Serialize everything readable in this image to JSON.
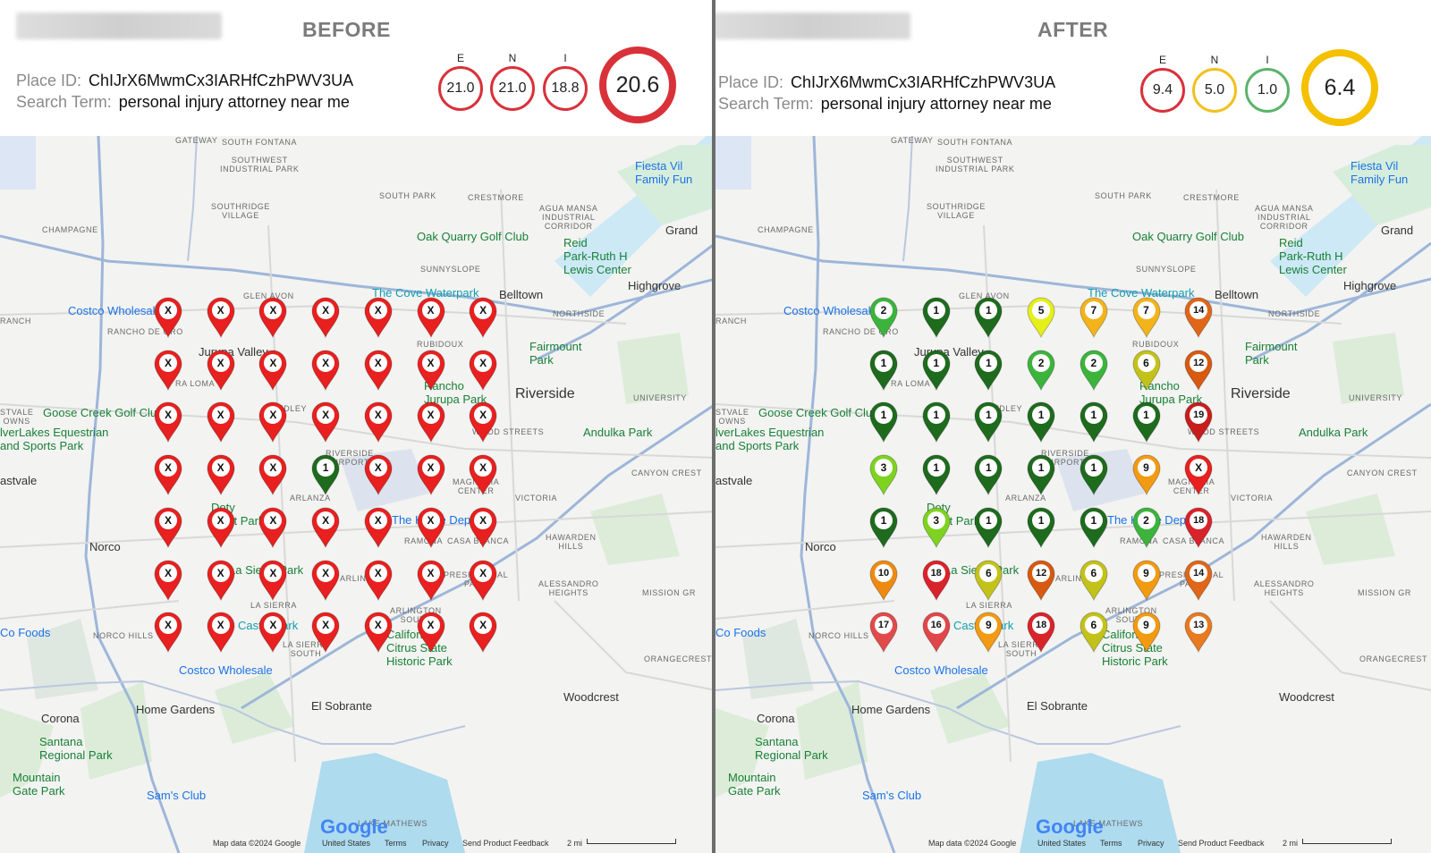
{
  "before": {
    "title": "BEFORE",
    "place_label": "Place ID:",
    "place_id": "ChIJrX6MwmCx3IARHfCzhPWV3UA",
    "search_label": "Search Term:",
    "search_term": "personal injury attorney near me",
    "metrics": [
      {
        "label": "E",
        "value": "21.0",
        "color": "#d9313a"
      },
      {
        "label": "N",
        "value": "21.0",
        "color": "#d9313a"
      },
      {
        "label": "I",
        "value": "18.8",
        "color": "#d9313a"
      }
    ],
    "overall": {
      "value": "20.6",
      "color": "#d9313a"
    },
    "grid": [
      [
        "X",
        "X",
        "X",
        "X",
        "X",
        "X",
        "X"
      ],
      [
        "X",
        "X",
        "X",
        "X",
        "X",
        "X",
        "X"
      ],
      [
        "X",
        "X",
        "X",
        "X",
        "X",
        "X",
        "X"
      ],
      [
        "X",
        "X",
        "X",
        "1",
        "X",
        "X",
        "X"
      ],
      [
        "X",
        "X",
        "X",
        "X",
        "X",
        "X",
        "X"
      ],
      [
        "X",
        "X",
        "X",
        "X",
        "X",
        "X",
        "X"
      ],
      [
        "X",
        "X",
        "X",
        "X",
        "X",
        "X",
        "X"
      ]
    ]
  },
  "after": {
    "title": "AFTER",
    "place_label": "Place ID:",
    "place_id": "ChIJrX6MwmCx3IARHfCzhPWV3UA",
    "search_label": "Search Term:",
    "search_term": "personal injury attorney near me",
    "metrics": [
      {
        "label": "E",
        "value": "9.4",
        "color": "#d9313a"
      },
      {
        "label": "N",
        "value": "5.0",
        "color": "#f2c01e"
      },
      {
        "label": "I",
        "value": "1.0",
        "color": "#5bb36a"
      }
    ],
    "overall": {
      "value": "6.4",
      "color": "#f5c000"
    },
    "grid": [
      [
        "2",
        "1",
        "1",
        "5",
        "7",
        "7",
        "14"
      ],
      [
        "1",
        "1",
        "1",
        "2",
        "2",
        "6",
        "12"
      ],
      [
        "1",
        "1",
        "1",
        "1",
        "1",
        "1",
        "19"
      ],
      [
        "3",
        "1",
        "1",
        "1",
        "1",
        "9",
        "X"
      ],
      [
        "1",
        "3",
        "1",
        "1",
        "1",
        "2",
        "18"
      ],
      [
        "10",
        "18",
        "6",
        "12",
        "6",
        "9",
        "14"
      ],
      [
        "17",
        "16",
        "9",
        "18",
        "6",
        "9",
        "13"
      ]
    ]
  },
  "pin_colors": {
    "X": "#e8201f",
    "1": "#1e6b1e",
    "2": "#3cb43c",
    "3": "#7ed321",
    "5": "#e5ef1a",
    "6": "#c3c21a",
    "7": "#f3b41b",
    "9": "#f29a12",
    "10": "#ef8a10",
    "12": "#d75a10",
    "13": "#e87a20",
    "14": "#e0661a",
    "16": "#e0474a",
    "17": "#e24a4a",
    "18": "#d9232a",
    "19": "#c81d1d"
  },
  "map": {
    "labels": [
      {
        "text": "GATEWAY",
        "cls": "small"
      },
      {
        "text": "SOUTH FONTANA",
        "cls": "small"
      },
      {
        "text": "SOUTHWEST\nINDUSTRIAL PARK",
        "cls": "small"
      },
      {
        "text": "SOUTHRIDGE\nVILLAGE",
        "cls": "small"
      },
      {
        "text": "SOUTH PARK",
        "cls": "small"
      },
      {
        "text": "CRESTMORE",
        "cls": "small"
      },
      {
        "text": "AGUA MANSA\nINDUSTRIAL\nCORRIDOR",
        "cls": "small"
      },
      {
        "text": "CHAMPAGNE",
        "cls": "small"
      },
      {
        "text": "Oak Quarry Golf Club",
        "cls": "poi-green"
      },
      {
        "text": "Reid\nPark-Ruth H\nLewis Center",
        "cls": "poi-green"
      },
      {
        "text": "Fiesta Vil\nFamily Fun",
        "cls": "poi-blue"
      },
      {
        "text": "Grand",
        "cls": "town"
      },
      {
        "text": "SUNNYSLOPE",
        "cls": "small"
      },
      {
        "text": "Highgrove",
        "cls": "town"
      },
      {
        "text": "GLEN AVON",
        "cls": "small"
      },
      {
        "text": "The Cove Waterpark",
        "cls": "poi-teal"
      },
      {
        "text": "Belltown",
        "cls": "town"
      },
      {
        "text": "RANCH",
        "cls": "small"
      },
      {
        "text": "Costco Wholesale",
        "cls": "poi-blue"
      },
      {
        "text": "RANCHO DE ORO",
        "cls": "small"
      },
      {
        "text": "NORTHSIDE",
        "cls": "small"
      },
      {
        "text": "Jurupa Valley",
        "cls": "town"
      },
      {
        "text": "RUBIDOUX",
        "cls": "small"
      },
      {
        "text": "Fairmount\nPark",
        "cls": "poi-green"
      },
      {
        "text": "RA LOMA",
        "cls": "small"
      },
      {
        "text": "Rancho\nJurupa Park",
        "cls": "poi-green"
      },
      {
        "text": "Riverside",
        "cls": "city"
      },
      {
        "text": "UNIVERSITY",
        "cls": "small"
      },
      {
        "text": "STVALE\nOWNS",
        "cls": "small"
      },
      {
        "text": "Goose Creek Golf Club",
        "cls": "poi-green"
      },
      {
        "text": "PEDLEY",
        "cls": "small"
      },
      {
        "text": "lverLakes Equestrian\nand Sports Park",
        "cls": "poi-green"
      },
      {
        "text": "WOOD STREETS",
        "cls": "small"
      },
      {
        "text": "Andulka Park",
        "cls": "poi-green"
      },
      {
        "text": "RIVERSIDE\nAIRPORT",
        "cls": "small"
      },
      {
        "text": "astvale",
        "cls": "town"
      },
      {
        "text": "ARLANZA",
        "cls": "small"
      },
      {
        "text": "MAGNOLIA\nCENTER",
        "cls": "small"
      },
      {
        "text": "CANYON CREST",
        "cls": "small"
      },
      {
        "text": "Doty\nTrust Park",
        "cls": "poi-green"
      },
      {
        "text": "VICTORIA",
        "cls": "small"
      },
      {
        "text": "The Home Depot",
        "cls": "poi-blue"
      },
      {
        "text": "Norco",
        "cls": "town"
      },
      {
        "text": "RAMONA",
        "cls": "small"
      },
      {
        "text": "CASA BLANCA",
        "cls": "small"
      },
      {
        "text": "HAWARDEN\nHILLS",
        "cls": "small"
      },
      {
        "text": "La Sierra Park",
        "cls": "poi-green"
      },
      {
        "text": "ARLINGTON",
        "cls": "small"
      },
      {
        "text": "PRESIDENTIAL\nPARK",
        "cls": "small"
      },
      {
        "text": "ALESSANDRO\nHEIGHTS",
        "cls": "small"
      },
      {
        "text": "MISSION GR",
        "cls": "small"
      },
      {
        "text": "LA SIERRA",
        "cls": "small"
      },
      {
        "text": "ARLINGTON\nSOUTH",
        "cls": "small"
      },
      {
        "text": "Co Foods",
        "cls": "poi-blue"
      },
      {
        "text": "NORCO HILLS",
        "cls": "small"
      },
      {
        "text": "Castle Park",
        "cls": "poi-teal"
      },
      {
        "text": "LA SIERRA\nSOUTH",
        "cls": "small"
      },
      {
        "text": "California\nCitrus State\nHistoric Park",
        "cls": "poi-green"
      },
      {
        "text": "ORANGECREST",
        "cls": "small"
      },
      {
        "text": "Costco Wholesale",
        "cls": "poi-blue"
      },
      {
        "text": "Woodcrest",
        "cls": "town"
      },
      {
        "text": "Home Gardens",
        "cls": "town"
      },
      {
        "text": "El Sobrante",
        "cls": "town"
      },
      {
        "text": "Corona",
        "cls": "town"
      },
      {
        "text": "Santana\nRegional Park",
        "cls": "poi-green"
      },
      {
        "text": "Mountain\nGate Park",
        "cls": "poi-green"
      },
      {
        "text": "Sam's Club",
        "cls": "poi-blue"
      },
      {
        "text": "Lake Mathews",
        "cls": "small"
      }
    ],
    "footer": {
      "logo": "Google",
      "mapdata": "Map data ©2024 Google",
      "country": "United States",
      "terms": "Terms",
      "privacy": "Privacy",
      "feedback": "Send Product Feedback",
      "scale": "2 mi"
    }
  }
}
